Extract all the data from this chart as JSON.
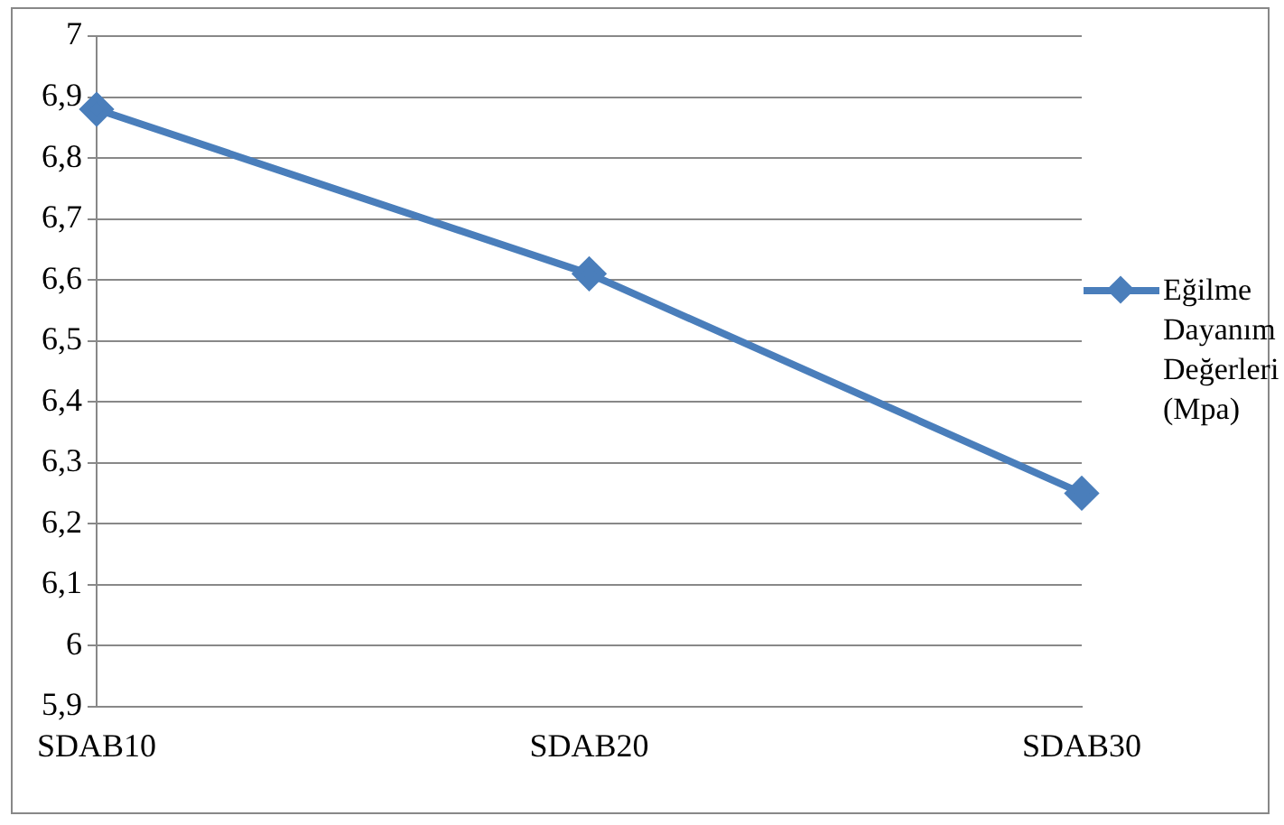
{
  "chart_data": {
    "type": "line",
    "categories": [
      "SDAB10",
      "SDAB20",
      "SDAB30"
    ],
    "series": [
      {
        "name": "Eğilme Dayanım Değerleri (Mpa)",
        "color": "#4a7ebb",
        "values": [
          6.88,
          6.61,
          6.25
        ]
      }
    ],
    "ylim": [
      5.9,
      7
    ],
    "yticks": [
      {
        "value": 5.9,
        "label": "5,9"
      },
      6,
      {
        "value": 6.1,
        "label": "6,1"
      },
      {
        "value": 6.2,
        "label": "6,2"
      },
      {
        "value": 6.3,
        "label": "6,3"
      },
      {
        "value": 6.4,
        "label": "6,4"
      },
      {
        "value": 6.5,
        "label": "6,5"
      },
      {
        "value": 6.6,
        "label": "6,6"
      },
      {
        "value": 6.7,
        "label": "6,7"
      },
      {
        "value": 6.8,
        "label": "6,8"
      },
      {
        "value": 6.9,
        "label": "6,9"
      },
      7
    ],
    "grid": "y",
    "legend": "right",
    "marker": "diamond",
    "line_style": "solid"
  }
}
